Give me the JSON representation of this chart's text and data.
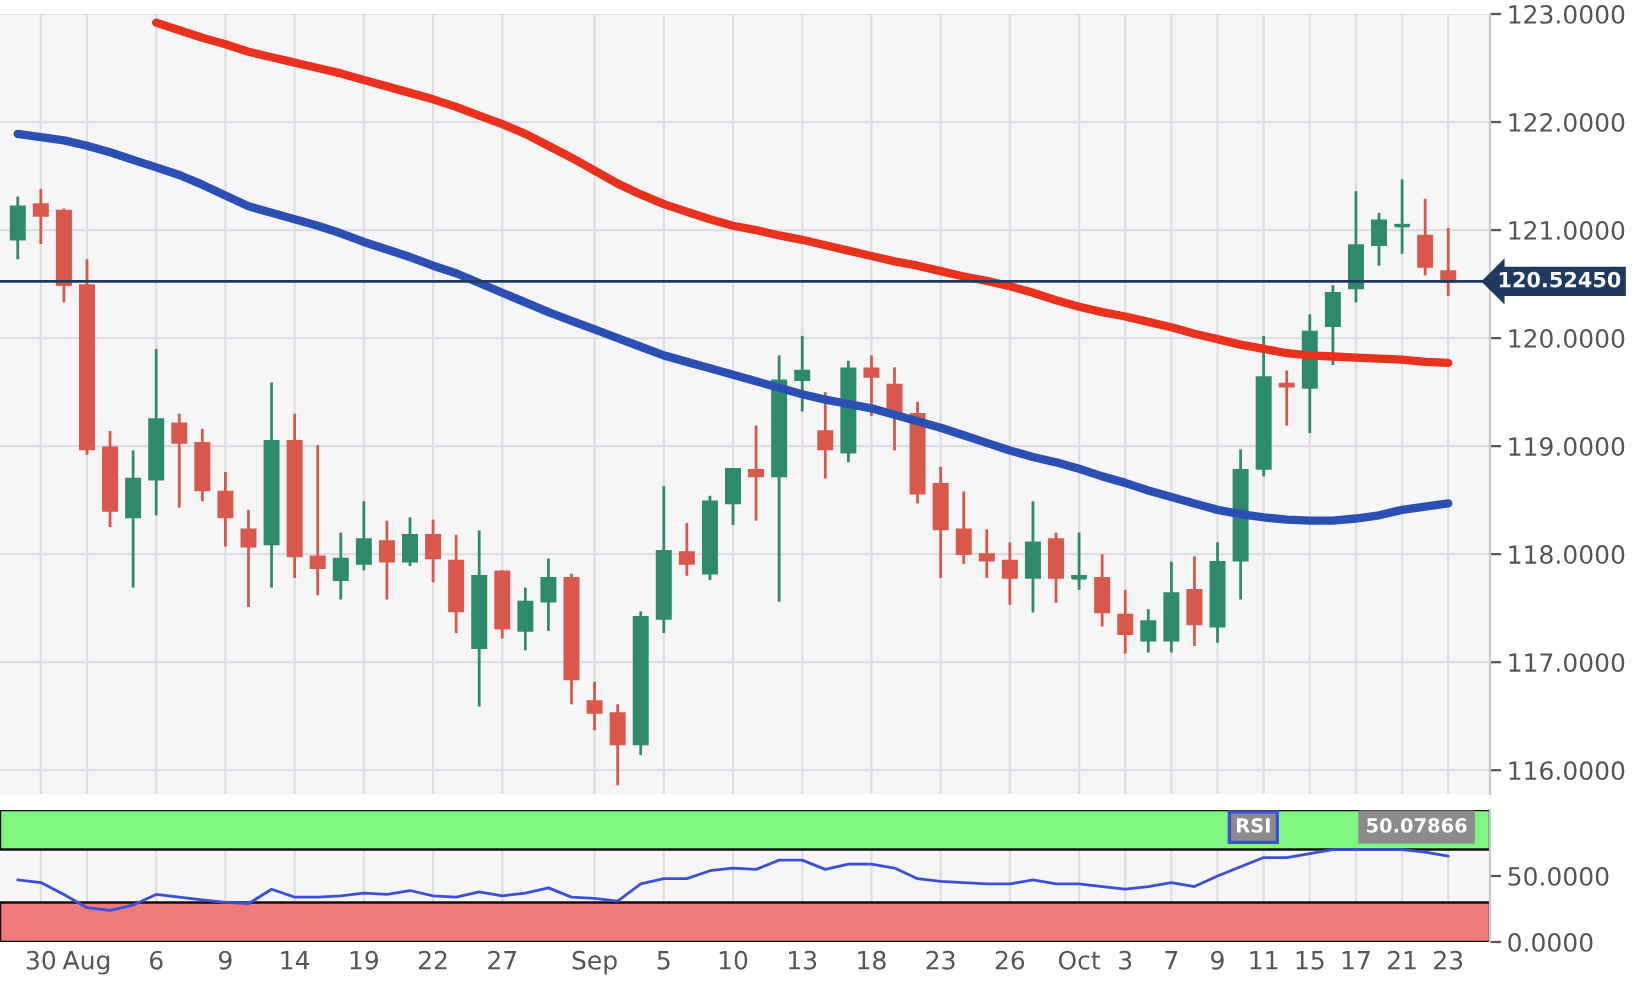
{
  "chart_data": [
    {
      "type": "candlestick",
      "categories": [
        null,
        null,
        null,
        null,
        null,
        null,
        null,
        null,
        null,
        null,
        null,
        null,
        null,
        null,
        null,
        null,
        null,
        null,
        null,
        null,
        null,
        null,
        null,
        null,
        null,
        null,
        null,
        null,
        null,
        null,
        null,
        null,
        null,
        null,
        null,
        null,
        null,
        null,
        null,
        null,
        null,
        null,
        null,
        null,
        null,
        null,
        null,
        null,
        null,
        null,
        null,
        null,
        null,
        null,
        null,
        null,
        null,
        null,
        null,
        null,
        null,
        null,
        null
      ],
      "ohlc": [
        [
          120.91,
          121.31,
          120.73,
          121.22
        ],
        [
          121.24,
          121.38,
          120.87,
          121.13
        ],
        [
          121.18,
          121.2,
          120.33,
          120.49
        ],
        [
          120.49,
          120.73,
          118.92,
          118.97
        ],
        [
          118.99,
          119.14,
          118.25,
          118.4
        ],
        [
          118.34,
          118.96,
          117.69,
          118.7
        ],
        [
          118.69,
          119.9,
          118.36,
          119.25
        ],
        [
          119.21,
          119.3,
          118.43,
          119.03
        ],
        [
          119.03,
          119.16,
          118.49,
          118.59
        ],
        [
          118.58,
          118.76,
          118.07,
          118.34
        ],
        [
          118.23,
          118.41,
          117.51,
          118.07
        ],
        [
          118.09,
          119.59,
          117.69,
          119.05
        ],
        [
          119.05,
          119.3,
          117.78,
          117.98
        ],
        [
          117.98,
          119.01,
          117.62,
          117.87
        ],
        [
          117.76,
          118.2,
          117.58,
          117.96
        ],
        [
          117.91,
          118.49,
          117.85,
          118.14
        ],
        [
          118.12,
          118.31,
          117.58,
          117.93
        ],
        [
          117.93,
          118.34,
          117.89,
          118.18
        ],
        [
          118.18,
          118.32,
          117.74,
          117.96
        ],
        [
          117.94,
          118.18,
          117.27,
          117.47
        ],
        [
          117.13,
          118.22,
          116.59,
          117.8
        ],
        [
          117.84,
          117.85,
          117.22,
          117.31
        ],
        [
          117.29,
          117.69,
          117.11,
          117.56
        ],
        [
          117.56,
          117.96,
          117.29,
          117.78
        ],
        [
          117.78,
          117.82,
          116.61,
          116.84
        ],
        [
          116.64,
          116.82,
          116.37,
          116.53
        ],
        [
          116.53,
          116.61,
          115.86,
          116.24
        ],
        [
          116.24,
          117.47,
          116.14,
          117.42
        ],
        [
          117.4,
          118.63,
          117.27,
          118.03
        ],
        [
          118.02,
          118.29,
          117.8,
          117.91
        ],
        [
          117.82,
          118.54,
          117.76,
          118.49
        ],
        [
          118.47,
          118.79,
          118.27,
          118.79
        ],
        [
          118.78,
          119.19,
          118.31,
          118.72
        ],
        [
          118.72,
          119.84,
          117.56,
          119.61
        ],
        [
          119.61,
          120.02,
          119.32,
          119.7
        ],
        [
          119.14,
          119.5,
          118.7,
          118.97
        ],
        [
          118.94,
          119.79,
          118.85,
          119.72
        ],
        [
          119.72,
          119.84,
          119.28,
          119.64
        ],
        [
          119.57,
          119.73,
          118.96,
          119.3
        ],
        [
          119.3,
          119.41,
          118.47,
          118.56
        ],
        [
          118.65,
          118.81,
          117.78,
          118.23
        ],
        [
          118.23,
          118.58,
          117.91,
          118.0
        ],
        [
          118.0,
          118.23,
          117.78,
          117.94
        ],
        [
          117.94,
          118.11,
          117.53,
          117.78
        ],
        [
          117.78,
          118.49,
          117.46,
          118.11
        ],
        [
          118.14,
          118.2,
          117.55,
          117.78
        ],
        [
          117.78,
          118.2,
          117.67,
          117.8
        ],
        [
          117.78,
          118.0,
          117.33,
          117.46
        ],
        [
          117.44,
          117.67,
          117.08,
          117.26
        ],
        [
          117.2,
          117.49,
          117.09,
          117.38
        ],
        [
          117.2,
          117.93,
          117.09,
          117.64
        ],
        [
          117.67,
          117.98,
          117.15,
          117.35
        ],
        [
          117.33,
          118.11,
          117.18,
          117.93
        ],
        [
          117.94,
          118.97,
          117.58,
          118.78
        ],
        [
          118.79,
          120.02,
          118.72,
          119.64
        ],
        [
          119.58,
          119.7,
          119.19,
          119.55
        ],
        [
          119.54,
          120.22,
          119.12,
          120.06
        ],
        [
          120.11,
          120.49,
          119.75,
          120.42
        ],
        [
          120.46,
          121.36,
          120.33,
          120.86
        ],
        [
          120.86,
          121.16,
          120.67,
          121.09
        ],
        [
          121.04,
          121.47,
          120.78,
          121.05
        ],
        [
          120.95,
          121.29,
          120.58,
          120.66
        ],
        [
          120.62,
          121.02,
          120.39,
          120.52
        ]
      ],
      "colors": [
        "#2f8a6c",
        "#d9584b",
        "#d9584b",
        "#d9584b",
        "#d9584b",
        "#2f8a6c",
        "#2f8a6c",
        "#d9584b",
        "#d9584b",
        "#d9584b",
        "#d9584b",
        "#2f8a6c",
        "#d9584b",
        "#d9584b",
        "#2f8a6c",
        "#2f8a6c",
        "#d9584b",
        "#2f8a6c",
        "#d9584b",
        "#d9584b",
        "#2f8a6c",
        "#d9584b",
        "#2f8a6c",
        "#2f8a6c",
        "#d9584b",
        "#d9584b",
        "#d9584b",
        "#2f8a6c",
        "#2f8a6c",
        "#d9584b",
        "#2f8a6c",
        "#2f8a6c",
        "#d9584b",
        "#2f8a6c",
        "#2f8a6c",
        "#d9584b",
        "#2f8a6c",
        "#d9584b",
        "#d9584b",
        "#d9584b",
        "#d9584b",
        "#d9584b",
        "#d9584b",
        "#d9584b",
        "#2f8a6c",
        "#d9584b",
        "#2f8a6c",
        "#d9584b",
        "#d9584b",
        "#2f8a6c",
        "#2f8a6c",
        "#d9584b",
        "#2f8a6c",
        "#2f8a6c",
        "#2f8a6c",
        "#d9584b",
        "#2f8a6c",
        "#2f8a6c",
        "#2f8a6c",
        "#2f8a6c",
        "#2f8a6c",
        "#d9584b",
        "#d9584b"
      ],
      "series": [
        {
          "type": "line",
          "color": "#e8321e",
          "values": [
            null,
            null,
            null,
            null,
            null,
            null,
            122.92,
            122.85,
            122.78,
            122.72,
            122.65,
            122.6,
            122.55,
            122.5,
            122.45,
            122.39,
            122.33,
            122.27,
            122.21,
            122.14,
            122.06,
            121.98,
            121.89,
            121.78,
            121.67,
            121.55,
            121.43,
            121.33,
            121.24,
            121.17,
            121.1,
            121.04,
            121.0,
            120.95,
            120.91,
            120.86,
            120.81,
            120.76,
            120.71,
            120.67,
            120.62,
            120.57,
            120.53,
            120.48,
            120.42,
            120.35,
            120.29,
            120.24,
            120.2,
            120.15,
            120.1,
            120.04,
            119.99,
            119.94,
            119.9,
            119.86,
            119.84,
            119.83,
            119.82,
            119.81,
            119.8,
            119.78,
            119.77
          ]
        },
        {
          "type": "line",
          "color": "#2a50b4",
          "values": [
            121.89,
            121.86,
            121.83,
            121.78,
            121.72,
            121.65,
            121.58,
            121.51,
            121.42,
            121.32,
            121.22,
            121.16,
            121.1,
            121.04,
            120.97,
            120.89,
            120.82,
            120.75,
            120.67,
            120.6,
            120.51,
            120.42,
            120.33,
            120.24,
            120.16,
            120.08,
            120.0,
            119.92,
            119.84,
            119.78,
            119.72,
            119.66,
            119.6,
            119.54,
            119.48,
            119.43,
            119.39,
            119.35,
            119.29,
            119.23,
            119.17,
            119.1,
            119.03,
            118.96,
            118.9,
            118.85,
            118.79,
            118.72,
            118.66,
            118.59,
            118.53,
            118.47,
            118.41,
            118.37,
            118.34,
            118.32,
            118.31,
            118.31,
            118.33,
            118.36,
            118.41,
            118.44,
            118.47
          ]
        }
      ],
      "ref_lines": [
        {
          "axis": "y",
          "value": 120.5245,
          "label": "120.52450",
          "color": "#1f3a5f"
        }
      ],
      "ylim": [
        115.78,
        123.0
      ],
      "yticks": [
        {
          "value": 116,
          "label": "116.0000"
        },
        {
          "value": 117,
          "label": "117.0000"
        },
        {
          "value": 118,
          "label": "118.0000"
        },
        {
          "value": 119,
          "label": "119.0000"
        },
        {
          "value": 120,
          "label": "120.0000"
        },
        {
          "value": 121,
          "label": "121.0000"
        },
        {
          "value": 122,
          "label": "122.0000"
        },
        {
          "value": 123,
          "label": "123.0000"
        }
      ],
      "grid": true,
      "tick_labels": "y"
    },
    {
      "type": "line",
      "categories": [
        null,
        "30",
        null,
        "Aug",
        null,
        null,
        "6",
        null,
        null,
        "9",
        null,
        null,
        "14",
        null,
        null,
        "19",
        null,
        null,
        "22",
        null,
        null,
        "27",
        null,
        null,
        null,
        "Sep",
        null,
        null,
        "5",
        null,
        null,
        "10",
        null,
        null,
        "13",
        null,
        null,
        "18",
        null,
        null,
        "23",
        null,
        null,
        "26",
        null,
        null,
        "Oct",
        null,
        "3",
        null,
        "7",
        null,
        "9",
        null,
        "11",
        null,
        "15",
        null,
        "17",
        null,
        "21",
        null,
        "23"
      ],
      "series": [
        {
          "name": "RSI",
          "color": "#3a50d8",
          "values": [
            47,
            45,
            36,
            26,
            24,
            28,
            36,
            34,
            32,
            30,
            29,
            40,
            34,
            34,
            35,
            37,
            36,
            39,
            35,
            34,
            38,
            35,
            37,
            41,
            34,
            33,
            31,
            44,
            48,
            48,
            54,
            56,
            55,
            62,
            62,
            55,
            59,
            59,
            56,
            48,
            46,
            45,
            44,
            44,
            47,
            44,
            44,
            42,
            40,
            42,
            45,
            42,
            50,
            57,
            64,
            64,
            67,
            70,
            70,
            70,
            70,
            68,
            65
          ]
        }
      ],
      "bands": [
        {
          "axis": "y",
          "from": 70,
          "to": 100,
          "color": "#80f580"
        },
        {
          "axis": "y",
          "from": 0,
          "to": 30,
          "color": "#f07a7a"
        }
      ],
      "annotations": [
        "50.07866"
      ],
      "ylim": [
        0,
        100
      ],
      "yticks": [
        {
          "value": 0,
          "label": "0.0000"
        },
        {
          "value": 50,
          "label": "50.0000"
        }
      ],
      "grid": "x"
    }
  ]
}
